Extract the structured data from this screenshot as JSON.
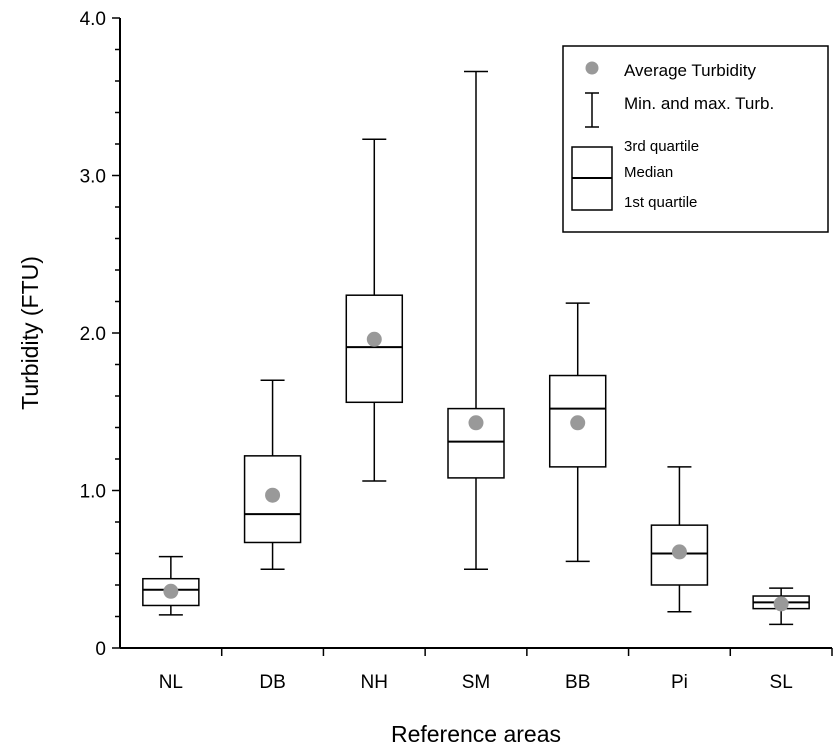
{
  "chart_data": {
    "type": "boxplot",
    "xlabel": "Reference areas",
    "ylabel": "Turbidity (FTU)",
    "ylim": [
      0,
      4.0
    ],
    "yticks": [
      {
        "value": 0,
        "label": "0"
      },
      {
        "value": 1.0,
        "label": "1.0"
      },
      {
        "value": 2.0,
        "label": "2.0"
      },
      {
        "value": 3.0,
        "label": "3.0"
      },
      {
        "value": 4.0,
        "label": "4.0"
      }
    ],
    "grid": false,
    "legend_position": "top-right",
    "categories": [
      "NL",
      "DB",
      "NH",
      "SM",
      "BB",
      "Pi",
      "SL"
    ],
    "boxes": [
      {
        "name": "NL",
        "min": 0.21,
        "q1": 0.27,
        "median": 0.37,
        "q3": 0.44,
        "max": 0.58,
        "mean": 0.36
      },
      {
        "name": "DB",
        "min": 0.5,
        "q1": 0.67,
        "median": 0.85,
        "q3": 1.22,
        "max": 1.7,
        "mean": 0.97
      },
      {
        "name": "NH",
        "min": 1.06,
        "q1": 1.56,
        "median": 1.91,
        "q3": 2.24,
        "max": 3.23,
        "mean": 1.96
      },
      {
        "name": "SM",
        "min": 0.5,
        "q1": 1.08,
        "median": 1.31,
        "q3": 1.52,
        "max": 3.66,
        "mean": 1.43
      },
      {
        "name": "BB",
        "min": 0.55,
        "q1": 1.15,
        "median": 1.52,
        "q3": 1.73,
        "max": 2.19,
        "mean": 1.43
      },
      {
        "name": "Pi",
        "min": 0.23,
        "q1": 0.4,
        "median": 0.6,
        "q3": 0.78,
        "max": 1.15,
        "mean": 0.61
      },
      {
        "name": "SL",
        "min": 0.15,
        "q1": 0.25,
        "median": 0.29,
        "q3": 0.33,
        "max": 0.38,
        "mean": 0.28
      }
    ],
    "legend": {
      "mean_label": "Average Turbidity",
      "range_label": "Min. and max. Turb.",
      "q3_label": "3rd quartile",
      "median_label": "Median",
      "q1_label": "1st quartile"
    },
    "colors": {
      "mean_marker": "#999999",
      "lines": "#000000",
      "background": "#ffffff"
    }
  }
}
